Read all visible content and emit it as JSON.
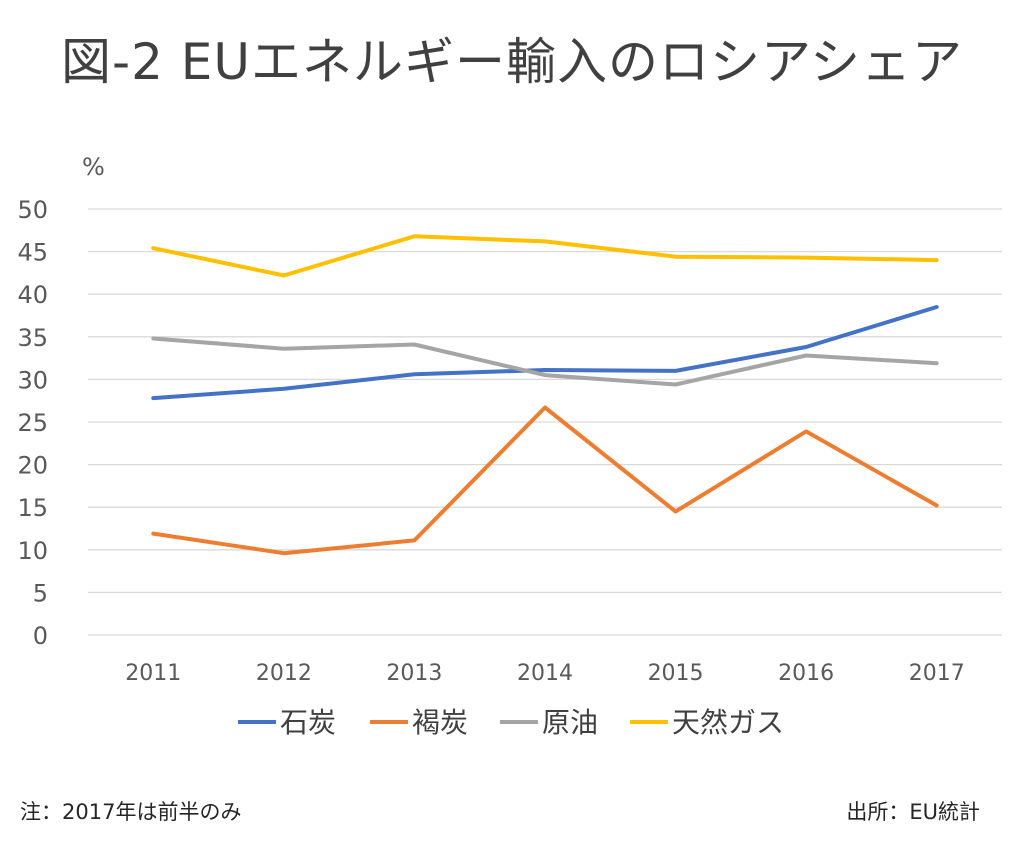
{
  "chart_data": {
    "type": "line",
    "title": "図-2 EUエネルギー輸入のロシアシェア",
    "ylabel": "%",
    "xlabel": "",
    "ylim": [
      0,
      50
    ],
    "yticks": [
      "0",
      "5",
      "10",
      "15",
      "20",
      "25",
      "30",
      "35",
      "40",
      "45",
      "50"
    ],
    "categories": [
      "2011",
      "2012",
      "2013",
      "2014",
      "2015",
      "2016",
      "2017"
    ],
    "grid": true,
    "legend_position": "bottom",
    "series": [
      {
        "name": "石炭",
        "color": "#4472C4",
        "values": [
          27.8,
          28.9,
          30.6,
          31.1,
          31.0,
          33.8,
          38.5
        ]
      },
      {
        "name": "褐炭",
        "color": "#ED7D31",
        "values": [
          11.9,
          9.6,
          11.1,
          26.7,
          14.5,
          23.9,
          15.2
        ]
      },
      {
        "name": "原油",
        "color": "#A5A5A5",
        "values": [
          34.8,
          33.6,
          34.1,
          30.5,
          29.4,
          32.8,
          31.9
        ]
      },
      {
        "name": "天然ガス",
        "color": "#FFC000",
        "values": [
          45.4,
          42.2,
          46.8,
          46.2,
          44.4,
          44.3,
          44.0
        ]
      }
    ]
  },
  "notes": {
    "left": "注：2017年は前半のみ",
    "right": "出所：EU統計"
  }
}
